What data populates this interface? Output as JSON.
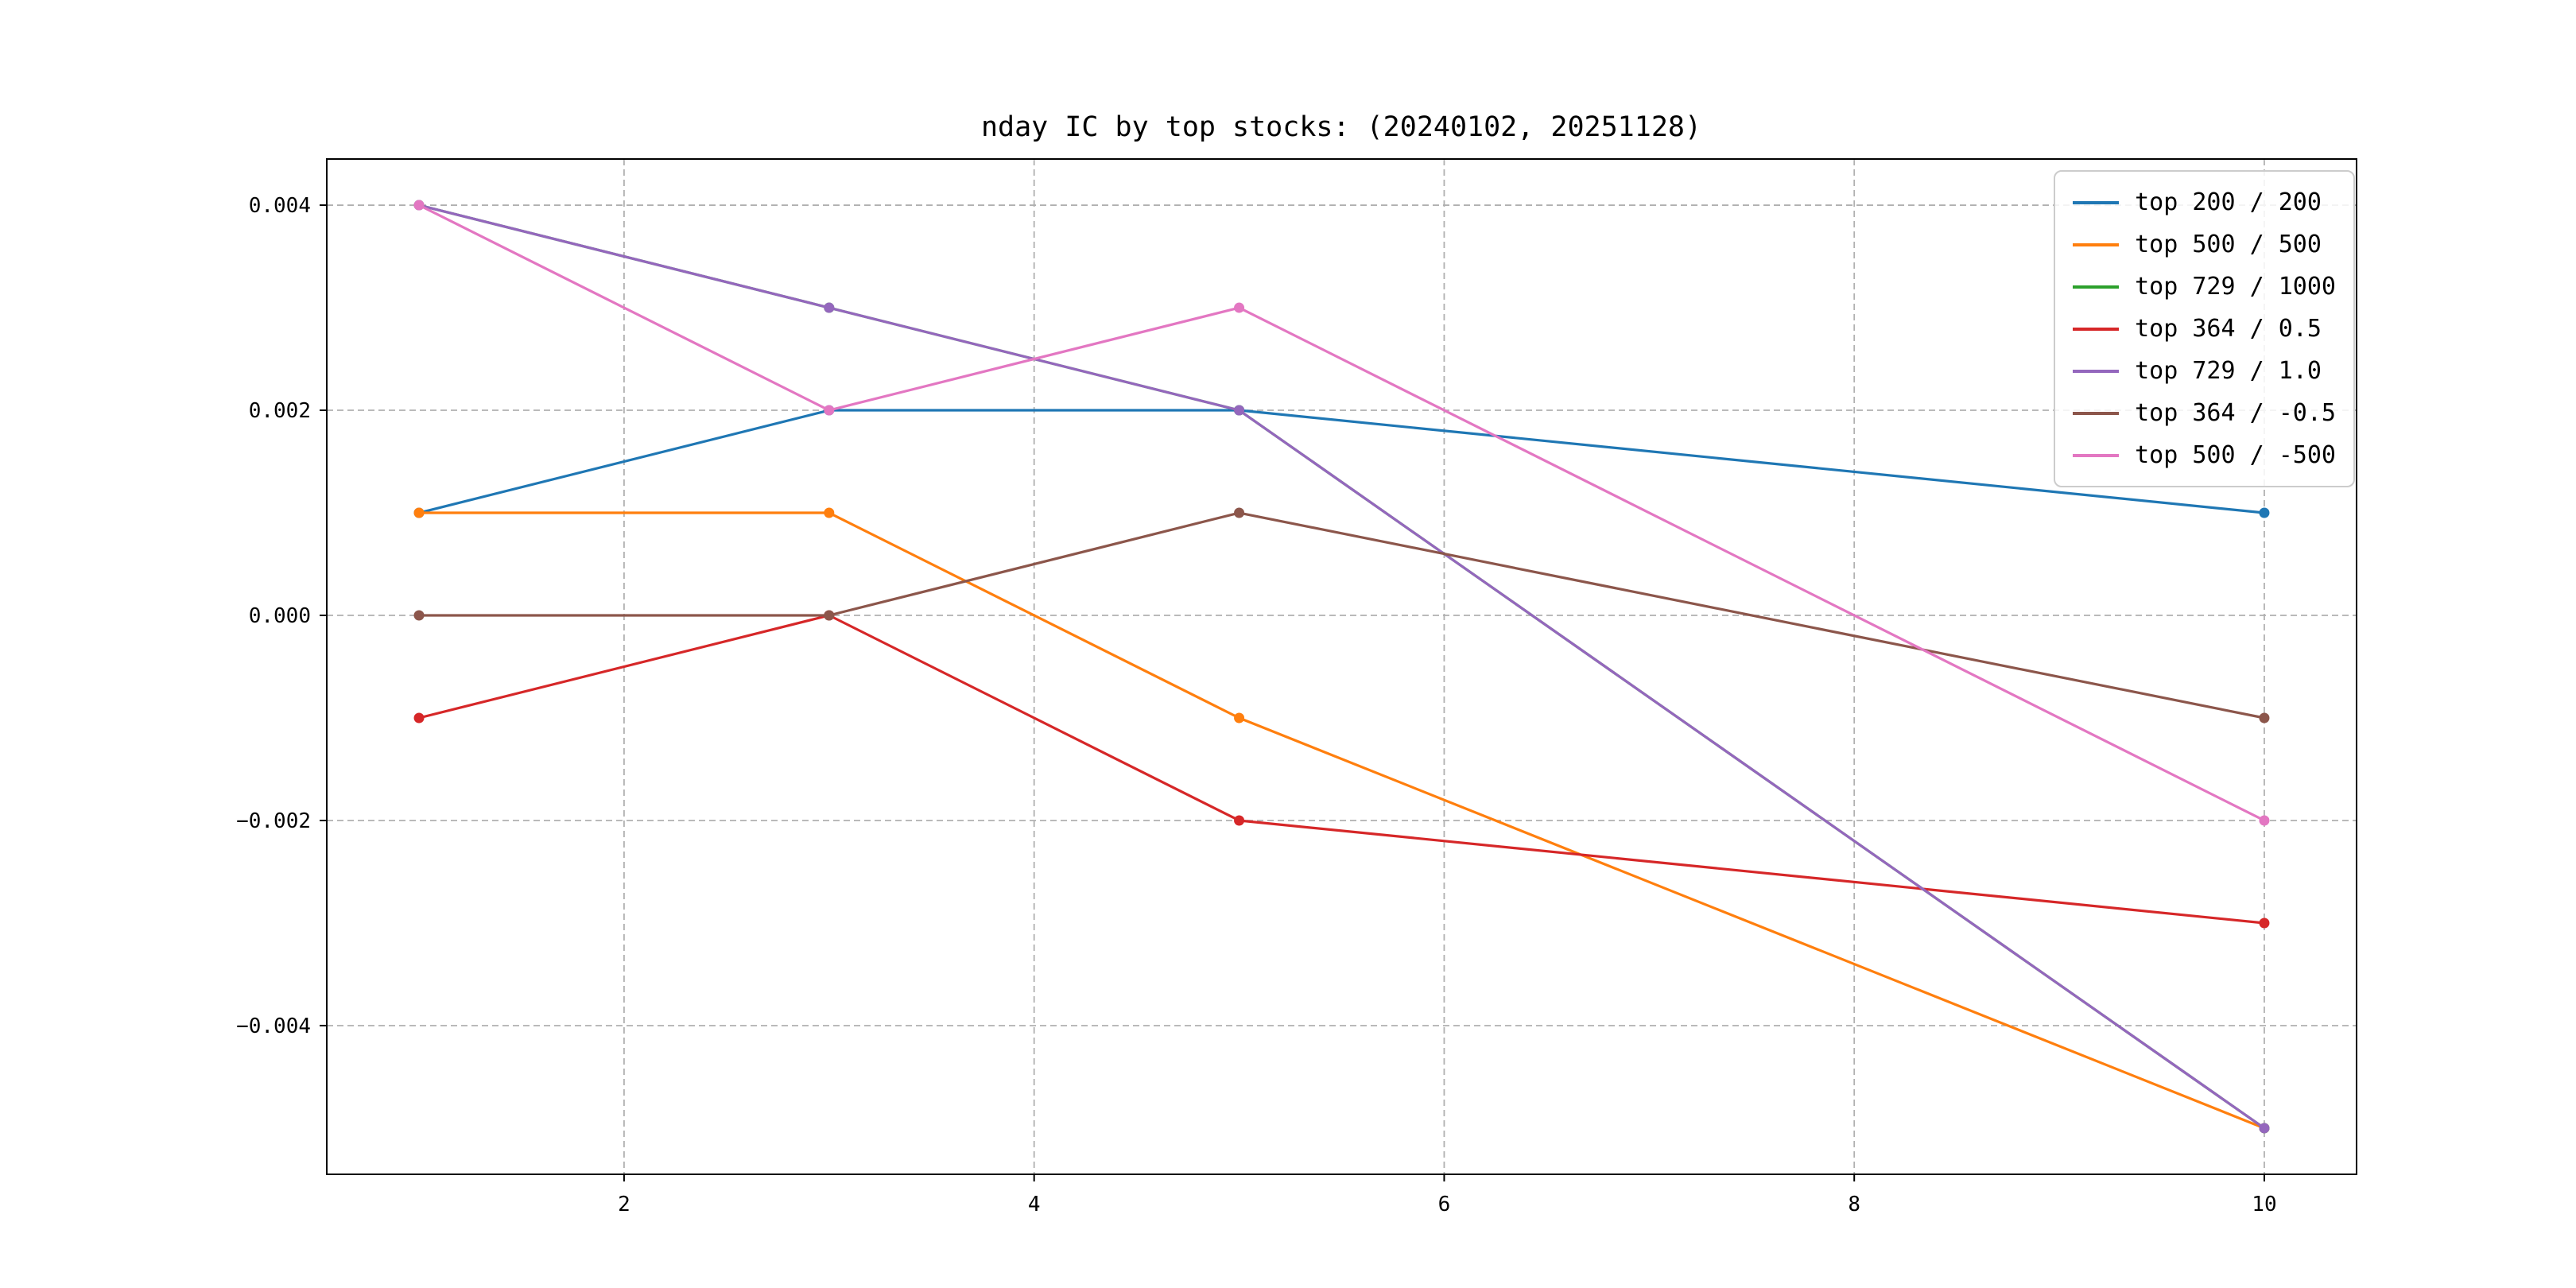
{
  "chart_data": {
    "type": "line",
    "title": "nday IC by top stocks: (20240102, 20251128)",
    "x": [
      1,
      3,
      5,
      10
    ],
    "series": [
      {
        "name": "top 200 / 200",
        "color": "#1f77b4",
        "values": [
          0.001,
          0.002,
          0.002,
          0.001
        ]
      },
      {
        "name": "top 500 / 500",
        "color": "#ff7f0e",
        "values": [
          0.001,
          0.001,
          -0.001,
          -0.005
        ]
      },
      {
        "name": "top 729 / 1000",
        "color": "#2ca02c",
        "values": [
          0.004,
          0.003,
          0.002,
          -0.005
        ]
      },
      {
        "name": "top 364 / 0.5",
        "color": "#d62728",
        "values": [
          -0.001,
          0.0,
          -0.002,
          -0.003
        ]
      },
      {
        "name": "top 729 / 1.0",
        "color": "#9467bd",
        "values": [
          0.004,
          0.003,
          0.002,
          -0.005
        ]
      },
      {
        "name": "top 364 / -0.5",
        "color": "#8c564b",
        "values": [
          0.0,
          0.0,
          0.001,
          -0.001
        ]
      },
      {
        "name": "top 500 / -500",
        "color": "#e377c2",
        "values": [
          0.004,
          0.002,
          0.003,
          -0.002
        ]
      }
    ],
    "xticks": {
      "values": [
        2,
        4,
        6,
        8,
        10
      ],
      "labels": [
        "2",
        "4",
        "6",
        "8",
        "10"
      ]
    },
    "yticks": {
      "values": [
        0.004,
        0.002,
        0.0,
        -0.002,
        -0.004
      ],
      "labels": [
        "0.004",
        "0.002",
        "0.000",
        "−0.002",
        "−0.004"
      ]
    },
    "xlim": [
      0.55,
      10.45
    ],
    "ylim": [
      -0.00545,
      0.00445
    ],
    "grid": true,
    "grid_style": "dashed",
    "grid_color": "#b0b0b0",
    "legend_position": "upper right"
  }
}
